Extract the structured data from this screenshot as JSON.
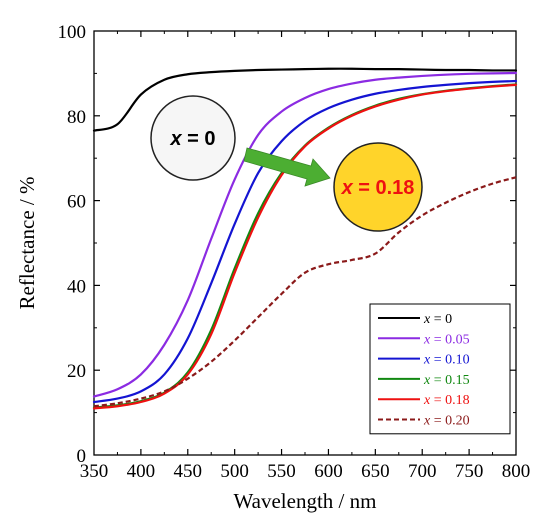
{
  "chart_data": {
    "type": "line",
    "xlabel": "Wavelength / nm",
    "ylabel": "Reflectance / %",
    "xlim": [
      350,
      800
    ],
    "ylim": [
      0,
      100
    ],
    "xticks": [
      "350",
      "400",
      "450",
      "500",
      "550",
      "600",
      "650",
      "700",
      "750",
      "800"
    ],
    "yticks": [
      "0",
      "20",
      "40",
      "60",
      "80",
      "100"
    ],
    "grid": false,
    "legend_position": "bottom-right",
    "x": [
      350,
      375,
      400,
      425,
      450,
      475,
      500,
      525,
      550,
      575,
      600,
      625,
      650,
      675,
      700,
      725,
      750,
      775,
      800
    ],
    "series": [
      {
        "name": "x = 0",
        "var": "x",
        "rest": " = 0",
        "color": "#000000",
        "dash": "none",
        "values": [
          76.5,
          78,
          85,
          88.5,
          89.8,
          90.3,
          90.6,
          90.8,
          90.9,
          91,
          91.1,
          91.1,
          91,
          91,
          90.9,
          90.8,
          90.8,
          90.7,
          90.7
        ]
      },
      {
        "name": "x = 0.05",
        "var": "x",
        "rest": " = 0.05",
        "color": "#8B2BE2",
        "dash": "none",
        "values": [
          13.8,
          15.5,
          19,
          26,
          36.5,
          51,
          65,
          75.5,
          81,
          84.2,
          86.3,
          87.6,
          88.5,
          89,
          89.4,
          89.7,
          89.9,
          90,
          90.1
        ]
      },
      {
        "name": "x = 0.10",
        "var": "x",
        "rest": " = 0.10",
        "color": "#1414D2",
        "dash": "none",
        "values": [
          12.5,
          13.3,
          15,
          19,
          27.5,
          40.5,
          54.5,
          66.5,
          74,
          78.8,
          81.8,
          83.8,
          85.2,
          86.1,
          86.8,
          87.3,
          87.7,
          88,
          88.2
        ]
      },
      {
        "name": "x = 0.15",
        "var": "x",
        "rest": " = 0.15",
        "color": "#118811",
        "dash": "none",
        "values": [
          11.2,
          11.7,
          12.7,
          14.7,
          19.5,
          29.5,
          44,
          57,
          66.5,
          73,
          77.2,
          80.2,
          82.4,
          84,
          85.1,
          85.9,
          86.5,
          87,
          87.4
        ]
      },
      {
        "name": "x = 0.18",
        "var": "x",
        "rest": " = 0.18",
        "color": "#EE1111",
        "dash": "none",
        "values": [
          11,
          11.5,
          12.5,
          14.5,
          19,
          28.5,
          43,
          56,
          66,
          72.8,
          77,
          80,
          82.2,
          83.8,
          85,
          85.8,
          86.4,
          86.9,
          87.3
        ]
      },
      {
        "name": "x = 0.20",
        "var": "x",
        "rest": " = 0.20",
        "color": "#8B1A1A",
        "dash": "5,3",
        "values": [
          11.5,
          12.2,
          13.3,
          15,
          18,
          22,
          27,
          32.5,
          38,
          43,
          45,
          46,
          47.5,
          52.5,
          56.5,
          59.5,
          62,
          64,
          65.5
        ]
      }
    ],
    "annotations": {
      "start": {
        "var": "x",
        "rest": " = 0",
        "fill": "#F6F6F6",
        "text_color": "#000000"
      },
      "end": {
        "var": "x",
        "rest": " = 0.18",
        "fill": "#FFD42A",
        "text_color": "#EE1111"
      },
      "arrow_color": "#4CAE32"
    }
  }
}
